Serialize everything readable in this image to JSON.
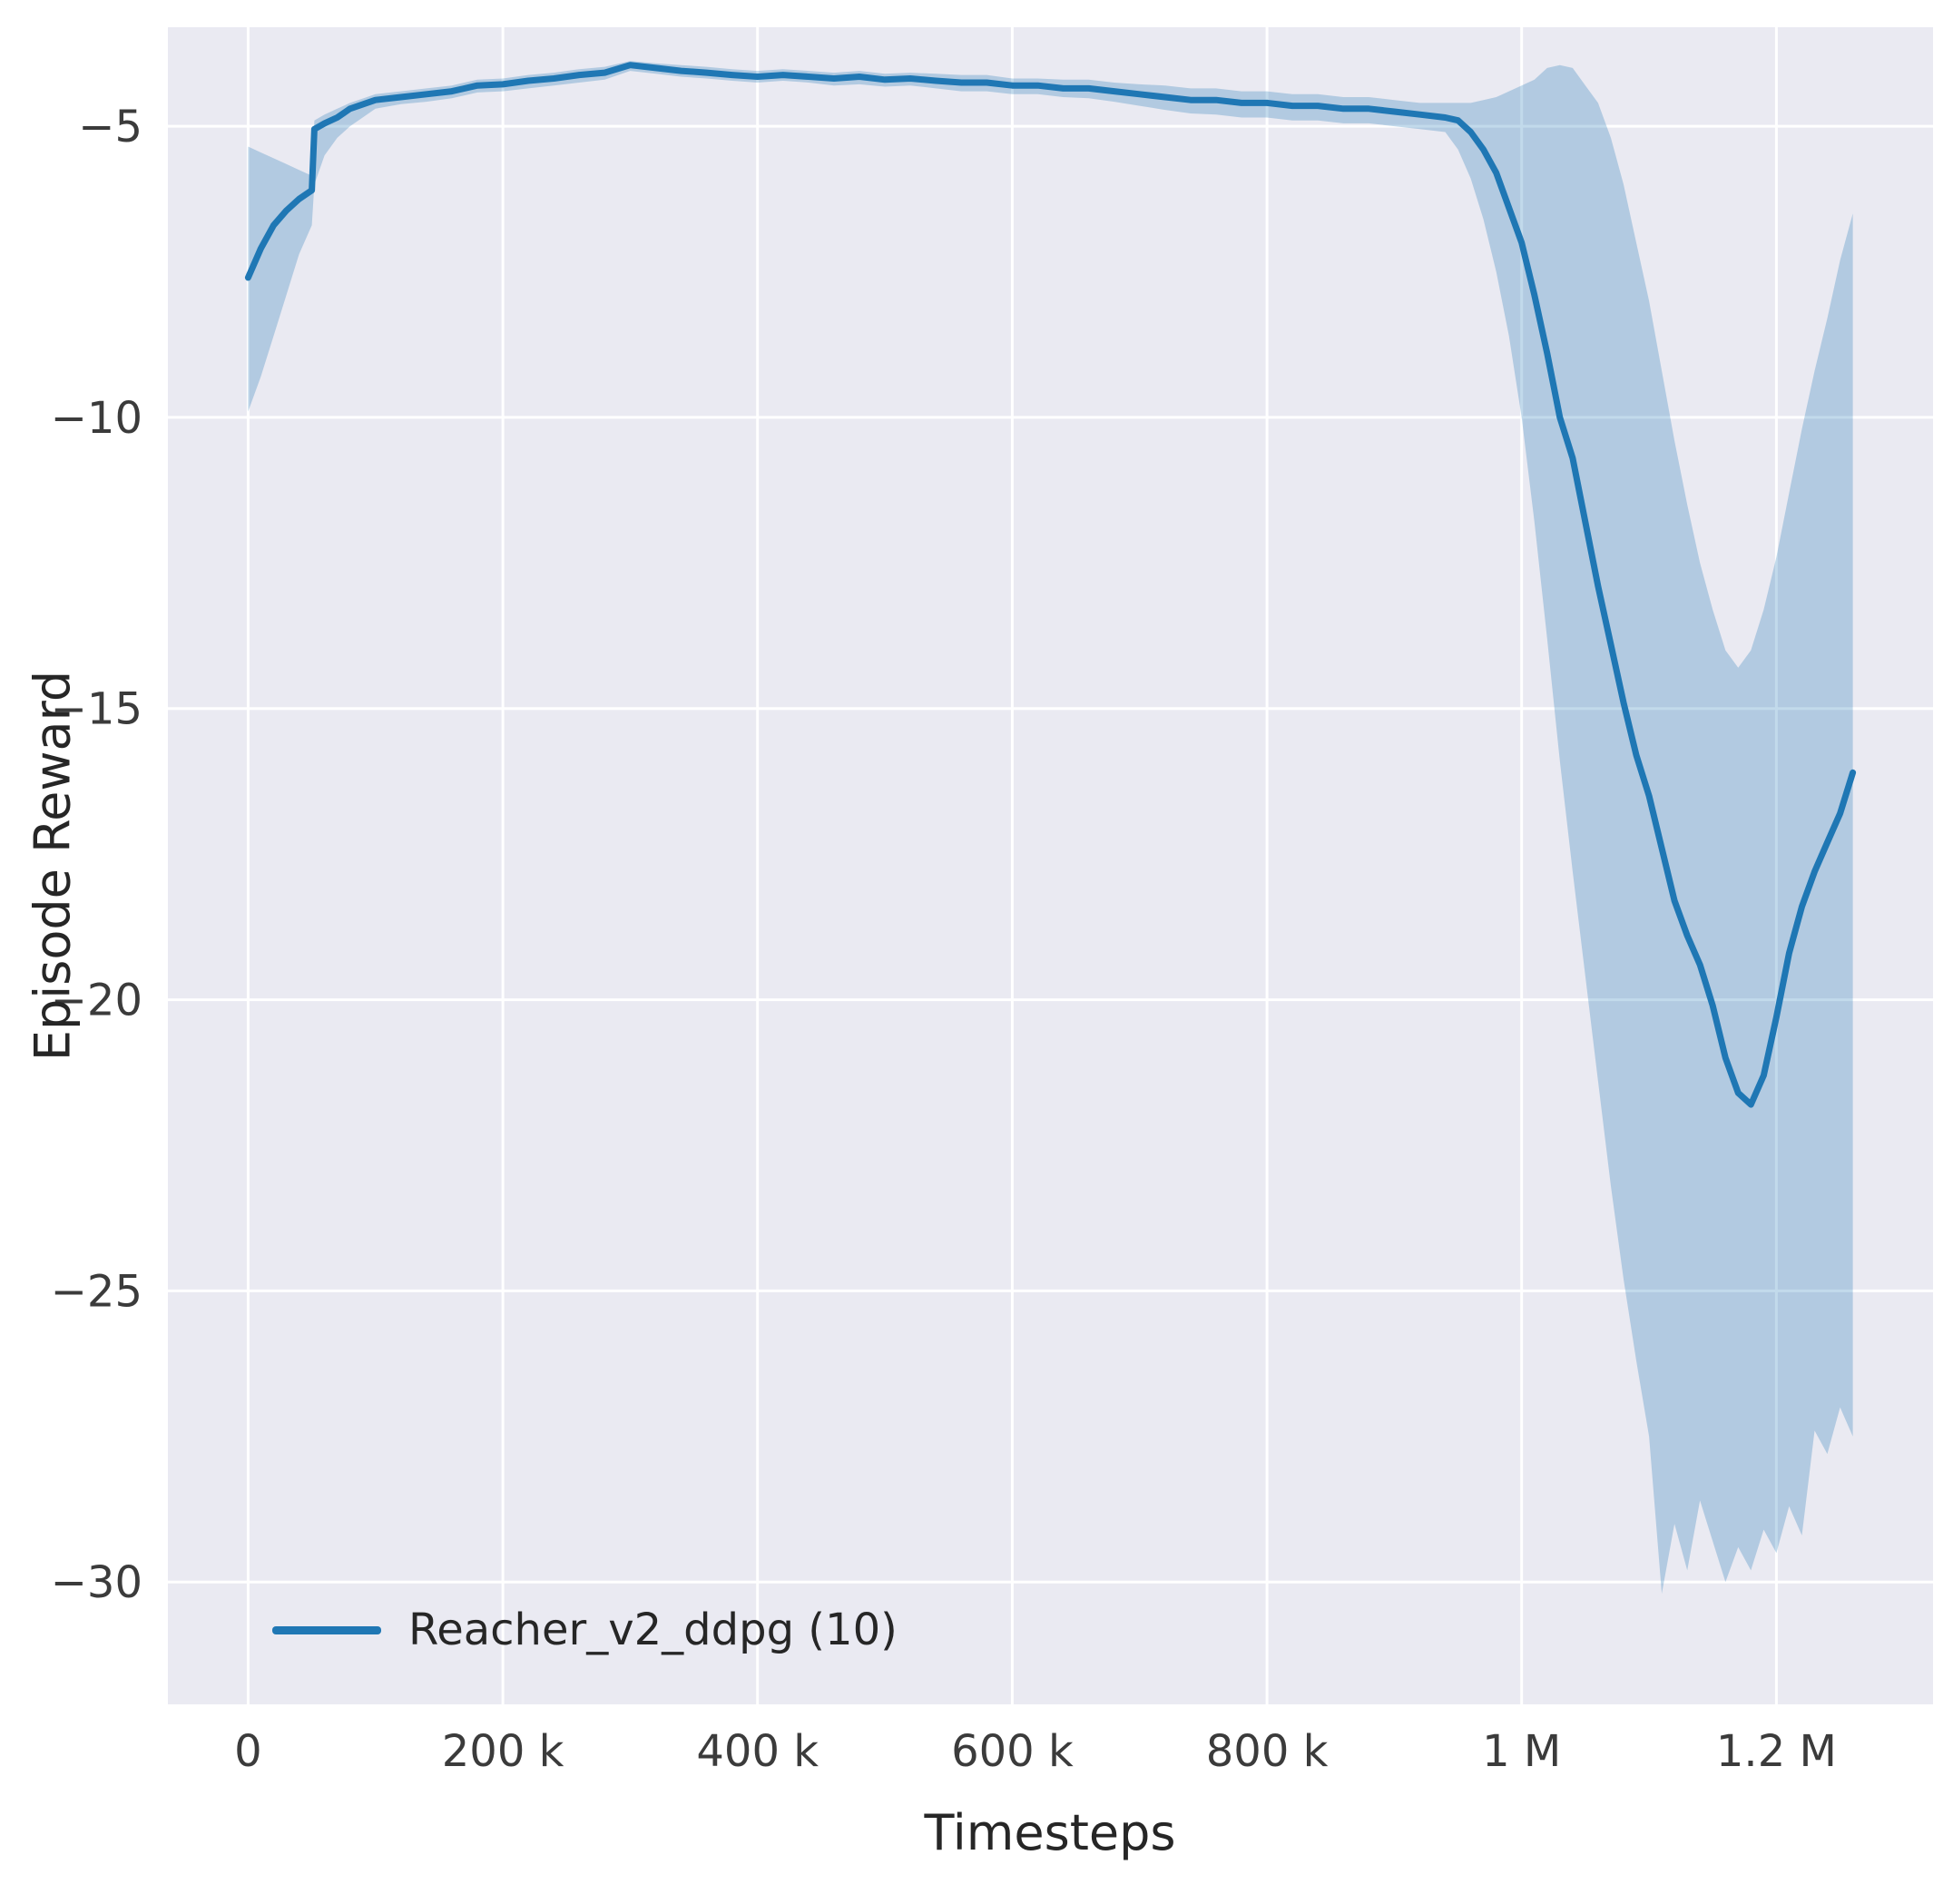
{
  "chart_data": {
    "type": "line",
    "title": "",
    "xlabel": "Timesteps",
    "ylabel": "Episode Reward",
    "background_color": "#eaeaf2",
    "grid_color": "#ffffff",
    "grid": true,
    "line_color": "#1f77b4",
    "band_color": "#1f77b4",
    "band_opacity": 0.27,
    "xlim": [
      -63000,
      1323000
    ],
    "ylim": [
      -32.1,
      -3.3
    ],
    "x_ticks": [
      {
        "value": 0,
        "label": "0"
      },
      {
        "value": 200000,
        "label": "200 k"
      },
      {
        "value": 400000,
        "label": "400 k"
      },
      {
        "value": 600000,
        "label": "600 k"
      },
      {
        "value": 800000,
        "label": "800 k"
      },
      {
        "value": 1000000,
        "label": "1 M"
      },
      {
        "value": 1200000,
        "label": "1.2 M"
      }
    ],
    "y_ticks": [
      {
        "value": -5,
        "label": "−5"
      },
      {
        "value": -10,
        "label": "−10"
      },
      {
        "value": -15,
        "label": "−15"
      },
      {
        "value": -20,
        "label": "−20"
      },
      {
        "value": -25,
        "label": "−25"
      },
      {
        "value": -30,
        "label": "−30"
      }
    ],
    "legend": {
      "position": "lower left",
      "entries": [
        {
          "label": "Reacher_v2_ddpg (10)",
          "color": "#1f77b4"
        }
      ]
    },
    "x": [
      0,
      10000,
      20000,
      30000,
      40000,
      50000,
      52000,
      60000,
      70000,
      80000,
      100000,
      120000,
      140000,
      160000,
      180000,
      200000,
      220000,
      240000,
      260000,
      280000,
      300000,
      320000,
      340000,
      360000,
      380000,
      400000,
      420000,
      440000,
      460000,
      480000,
      500000,
      520000,
      540000,
      560000,
      580000,
      600000,
      620000,
      640000,
      660000,
      680000,
      700000,
      720000,
      740000,
      760000,
      780000,
      800000,
      820000,
      840000,
      860000,
      880000,
      900000,
      920000,
      940000,
      950000,
      960000,
      970000,
      980000,
      990000,
      1000000,
      1010000,
      1020000,
      1030000,
      1040000,
      1050000,
      1060000,
      1070000,
      1080000,
      1090000,
      1100000,
      1110000,
      1120000,
      1130000,
      1140000,
      1150000,
      1160000,
      1170000,
      1180000,
      1190000,
      1200000,
      1210000,
      1220000,
      1230000,
      1240000,
      1250000,
      1260000
    ],
    "series": [
      {
        "name": "Reacher_v2_ddpg (10)",
        "color": "#1f77b4",
        "mean": [
          -7.6,
          -7.1,
          -6.7,
          -6.45,
          -6.25,
          -6.1,
          -5.05,
          -4.95,
          -4.85,
          -4.7,
          -4.55,
          -4.5,
          -4.45,
          -4.4,
          -4.3,
          -4.28,
          -4.22,
          -4.18,
          -4.12,
          -4.08,
          -3.95,
          -4.0,
          -4.05,
          -4.08,
          -4.12,
          -4.15,
          -4.12,
          -4.15,
          -4.18,
          -4.15,
          -4.2,
          -4.18,
          -4.22,
          -4.25,
          -4.25,
          -4.3,
          -4.3,
          -4.35,
          -4.35,
          -4.4,
          -4.45,
          -4.5,
          -4.55,
          -4.55,
          -4.6,
          -4.6,
          -4.65,
          -4.65,
          -4.7,
          -4.7,
          -4.75,
          -4.8,
          -4.85,
          -4.9,
          -5.1,
          -5.4,
          -5.8,
          -6.4,
          -7.0,
          -7.9,
          -8.9,
          -10.0,
          -10.7,
          -11.8,
          -12.9,
          -13.9,
          -14.9,
          -15.8,
          -16.5,
          -17.4,
          -18.3,
          -18.9,
          -19.4,
          -20.1,
          -21.0,
          -21.6,
          -21.8,
          -21.3,
          -20.3,
          -19.2,
          -18.4,
          -17.8,
          -17.3,
          -16.8,
          -16.1
        ],
        "band_upper": [
          -5.35,
          -5.45,
          -5.55,
          -5.65,
          -5.75,
          -5.85,
          -4.9,
          -4.8,
          -4.7,
          -4.6,
          -4.45,
          -4.4,
          -4.35,
          -4.3,
          -4.2,
          -4.18,
          -4.12,
          -4.08,
          -4.02,
          -3.98,
          -3.88,
          -3.92,
          -3.95,
          -3.98,
          -4.02,
          -4.05,
          -4.02,
          -4.05,
          -4.08,
          -4.05,
          -4.1,
          -4.08,
          -4.1,
          -4.12,
          -4.12,
          -4.18,
          -4.18,
          -4.2,
          -4.2,
          -4.25,
          -4.28,
          -4.3,
          -4.35,
          -4.35,
          -4.4,
          -4.4,
          -4.45,
          -4.45,
          -4.5,
          -4.5,
          -4.55,
          -4.6,
          -4.6,
          -4.6,
          -4.6,
          -4.55,
          -4.5,
          -4.4,
          -4.3,
          -4.2,
          -4.0,
          -3.95,
          -4.0,
          -4.3,
          -4.6,
          -5.2,
          -6.0,
          -7.0,
          -8.0,
          -9.2,
          -10.4,
          -11.5,
          -12.5,
          -13.3,
          -14.0,
          -14.3,
          -14.0,
          -13.3,
          -12.4,
          -11.3,
          -10.2,
          -9.2,
          -8.3,
          -7.3,
          -6.5
        ],
        "band_lower": [
          -9.9,
          -9.3,
          -8.6,
          -7.9,
          -7.2,
          -6.7,
          -6.0,
          -5.5,
          -5.2,
          -5.0,
          -4.7,
          -4.62,
          -4.58,
          -4.52,
          -4.42,
          -4.4,
          -4.35,
          -4.3,
          -4.25,
          -4.2,
          -4.05,
          -4.1,
          -4.15,
          -4.18,
          -4.22,
          -4.25,
          -4.22,
          -4.25,
          -4.3,
          -4.28,
          -4.32,
          -4.3,
          -4.35,
          -4.4,
          -4.4,
          -4.45,
          -4.45,
          -4.5,
          -4.52,
          -4.58,
          -4.65,
          -4.72,
          -4.78,
          -4.8,
          -4.85,
          -4.85,
          -4.9,
          -4.9,
          -4.95,
          -4.95,
          -5.0,
          -5.05,
          -5.1,
          -5.4,
          -5.9,
          -6.6,
          -7.5,
          -8.6,
          -10.0,
          -11.8,
          -13.8,
          -15.9,
          -17.8,
          -19.6,
          -21.4,
          -23.2,
          -24.8,
          -26.2,
          -27.5,
          -30.2,
          -29.0,
          -29.8,
          -28.6,
          -29.3,
          -30.0,
          -29.4,
          -29.8,
          -29.1,
          -29.5,
          -28.7,
          -29.2,
          -27.4,
          -27.8,
          -27.0,
          -27.5
        ]
      }
    ]
  }
}
